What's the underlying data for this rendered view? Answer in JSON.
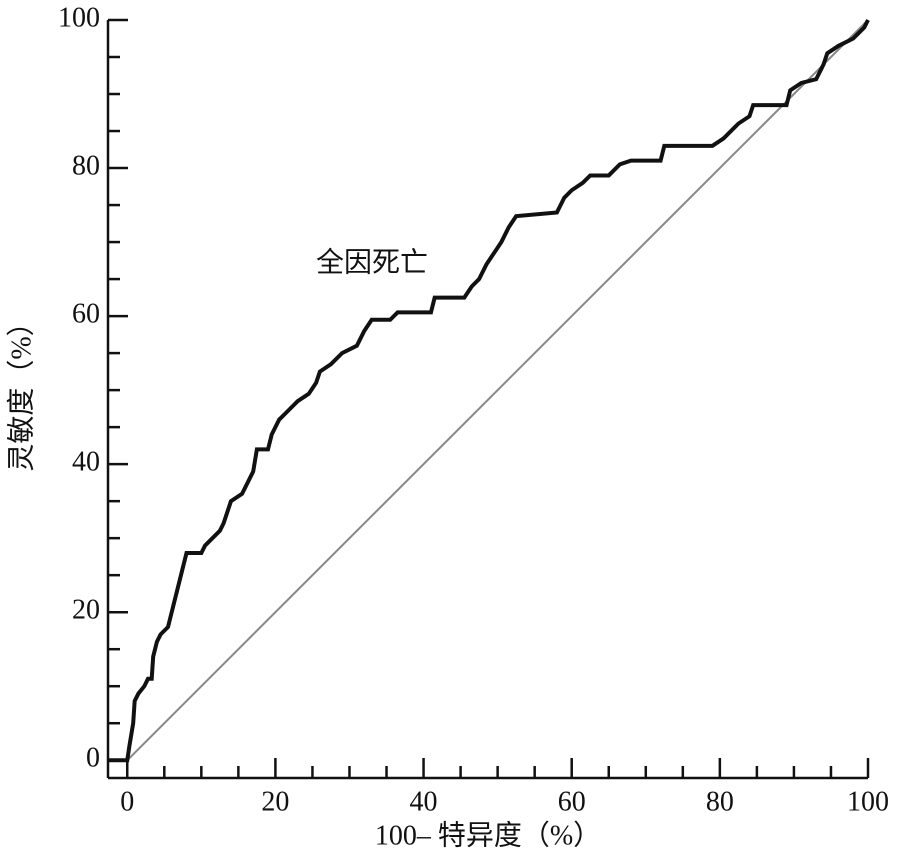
{
  "chart_data": {
    "type": "line",
    "xlabel": "100– 特异度（%）",
    "ylabel": "灵敏度（%）",
    "annotation": "全因死亡",
    "xlim": [
      -2.6,
      100
    ],
    "ylim": [
      -2.4,
      100
    ],
    "xticks": [
      0,
      20,
      40,
      60,
      80,
      100
    ],
    "yticks": [
      0,
      20,
      40,
      60,
      80,
      100
    ],
    "xminorticks": [
      5,
      10,
      15,
      25,
      30,
      35,
      45,
      50,
      55,
      65,
      70,
      75,
      85,
      90,
      95
    ],
    "yminorticks": [
      5,
      10,
      15,
      25,
      30,
      35,
      45,
      50,
      55,
      65,
      70,
      75,
      85,
      90,
      95
    ],
    "x": [
      -2.5,
      0,
      0.3,
      0.8,
      1,
      1.5,
      2.3,
      2.8,
      3.3,
      3.5,
      4,
      4.5,
      5.5,
      6,
      6.5,
      7,
      7.5,
      8,
      10,
      10.5,
      11.5,
      12.5,
      13,
      14,
      15.5,
      16,
      17,
      17.5,
      19,
      19.5,
      20.5,
      22,
      23,
      24.5,
      25.5,
      26,
      27.5,
      29,
      31,
      32,
      33,
      35.5,
      36.5,
      41,
      41.5,
      45.5,
      46.5,
      47.5,
      48.5,
      49.5,
      50.5,
      51.5,
      52.5,
      58,
      59,
      60,
      61.5,
      62.5,
      65,
      66.5,
      68,
      72,
      72.5,
      79,
      80.5,
      82.5,
      84,
      84.5,
      89,
      89.5,
      91,
      93,
      93.5,
      94,
      94.5,
      96,
      98,
      99.5,
      100
    ],
    "series": [
      {
        "color": "#111111",
        "values": [
          0,
          0,
          2,
          5,
          8,
          9,
          10,
          11,
          11,
          14,
          16,
          17,
          18,
          20,
          22,
          24,
          26,
          28,
          28,
          29,
          30,
          31,
          32,
          35,
          36,
          37,
          39,
          42,
          42,
          44,
          46,
          47.5,
          48.5,
          49.5,
          51,
          52.5,
          53.5,
          55,
          56,
          58,
          59.5,
          59.5,
          60.5,
          60.5,
          62.5,
          62.5,
          64,
          65,
          67,
          68.5,
          70,
          72,
          73.5,
          74,
          76,
          77,
          78,
          79,
          79,
          80.5,
          81,
          81,
          83,
          83,
          84,
          86,
          87,
          88.5,
          88.5,
          90.5,
          91.5,
          92,
          93,
          94,
          95.5,
          96.5,
          97.5,
          99,
          100
        ]
      }
    ],
    "reference_color": "#888888"
  }
}
